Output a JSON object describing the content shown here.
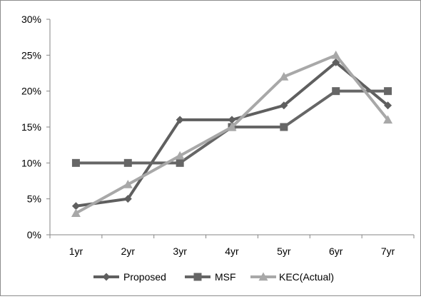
{
  "chart_data": {
    "type": "line",
    "categories": [
      "1yr",
      "2yr",
      "3yr",
      "4yr",
      "5yr",
      "6yr",
      "7yr"
    ],
    "series": [
      {
        "name": "Proposed",
        "marker": "diamond",
        "color": "#5f5f5f",
        "values": [
          4,
          5,
          16,
          16,
          18,
          24,
          18
        ]
      },
      {
        "name": "MSF",
        "marker": "square",
        "color": "#666666",
        "values": [
          10,
          10,
          10,
          15,
          15,
          20,
          20
        ]
      },
      {
        "name": "KEC(Actual)",
        "marker": "triangle",
        "color": "#a8a8a8",
        "values": [
          3,
          7,
          11,
          15,
          22,
          25,
          16
        ]
      }
    ],
    "ylim": [
      0,
      30
    ],
    "yticks": [
      0,
      5,
      10,
      15,
      20,
      25,
      30
    ],
    "ytick_labels": [
      "0%",
      "5%",
      "10%",
      "15%",
      "20%",
      "25%",
      "30%"
    ],
    "grid": false,
    "legend": "bottom"
  }
}
